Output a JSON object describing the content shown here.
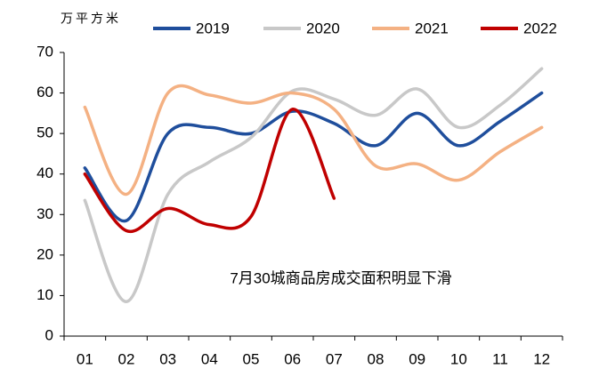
{
  "chart_data": {
    "type": "line",
    "y_axis_label": "万平方米",
    "annotation": "7月30城商品房成交面积明显下滑",
    "categories": [
      "01",
      "02",
      "03",
      "04",
      "05",
      "06",
      "07",
      "08",
      "09",
      "10",
      "11",
      "12"
    ],
    "series": [
      {
        "name": "2019",
        "color": "#1f4e9c",
        "values": [
          41.5,
          28.5,
          50,
          51.5,
          50,
          55.5,
          52.5,
          47,
          55,
          47,
          53,
          60
        ]
      },
      {
        "name": "2020",
        "color": "#c8c8c8",
        "values": [
          33.5,
          8.5,
          35,
          43,
          49,
          60.5,
          58.5,
          54.5,
          61,
          51.5,
          57,
          66
        ]
      },
      {
        "name": "2021",
        "color": "#f4b183",
        "values": [
          56.5,
          35,
          60,
          59.5,
          57.5,
          60,
          56,
          42,
          42.5,
          38.5,
          45.5,
          51.5
        ]
      },
      {
        "name": "2022",
        "color": "#c00000",
        "values": [
          40,
          26,
          31.5,
          27.5,
          29.5,
          56,
          34,
          null,
          null,
          null,
          null,
          null
        ]
      }
    ],
    "ylim": [
      0,
      70
    ],
    "yticks": [
      0,
      10,
      20,
      30,
      40,
      50,
      60,
      70
    ],
    "legend": "top",
    "grid": false
  }
}
